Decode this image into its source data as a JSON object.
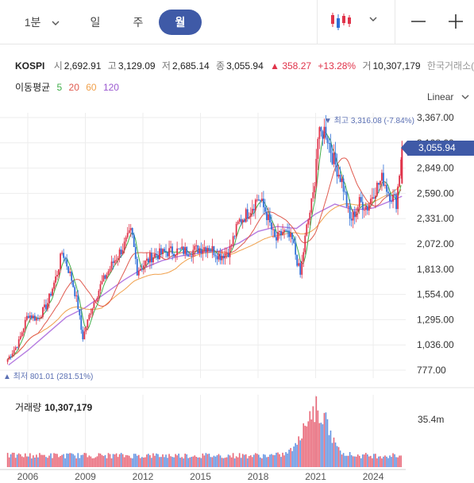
{
  "toolbar": {
    "period_label": "1분",
    "day_label": "일",
    "week_label": "주",
    "month_label": "월",
    "candle_icon": "candlestick-icon",
    "chart_type_icon": "chevron-down-icon",
    "zoom_out_icon": "minus-icon",
    "zoom_in_icon": "plus-icon"
  },
  "quote": {
    "symbol": "KOSPI",
    "open_label": "시",
    "open": "2,692.91",
    "high_label": "고",
    "high": "3,129.09",
    "low_label": "저",
    "low": "2,685.14",
    "close_label": "종",
    "close": "3,055.94",
    "change": "▲ 358.27",
    "change_pct": "+13.28%",
    "volume_label": "거",
    "volume": "10,307,179",
    "exchange": "한국거래소(KRX)"
  },
  "moving_average": {
    "label": "이동평균",
    "periods": [
      {
        "text": "5",
        "color": "#3fae49"
      },
      {
        "text": "20",
        "color": "#e05a4e"
      },
      {
        "text": "60",
        "color": "#f0a04b"
      },
      {
        "text": "120",
        "color": "#9b59d0"
      }
    ]
  },
  "scale_mode": "Linear",
  "current_price_tag": "3,055.94",
  "annotations": {
    "high": "▼ 최고 3,316.08 (-7.84%)",
    "low": "▲ 최저 801.01 (281.51%)"
  },
  "volume_panel": {
    "label": "거래량",
    "value": "10,307,179",
    "max_label": "35.4m"
  },
  "colors": {
    "up": "#e0334a",
    "down": "#2f6fd8",
    "accent": "#3f5aa7"
  },
  "chart_data": {
    "type": "line",
    "title": "",
    "ylim": [
      777,
      3367
    ],
    "y_ticks": [
      "3,367.00",
      "3,108.00",
      "2,849.00",
      "2,590.00",
      "2,331.00",
      "2,072.00",
      "1,813.00",
      "1,554.00",
      "1,295.00",
      "1,036.00",
      "777.00"
    ],
    "x_ticks": [
      "2006",
      "2009",
      "2012",
      "2015",
      "2018",
      "2021",
      "2024"
    ],
    "x_tick_years": [
      2006,
      2009,
      2012,
      2015,
      2018,
      2021,
      2024
    ],
    "grid": true,
    "series": [
      {
        "x": [
          2004.95,
          2005.5,
          2006.0,
          2006.5,
          2007.0,
          2007.5,
          2007.8,
          2008.3,
          2008.6,
          2008.85,
          2009.3,
          2009.8,
          2010.5,
          2011.0,
          2011.4,
          2011.7,
          2012.5,
          2013.5,
          2014.5,
          2015.4,
          2016.0,
          2016.5,
          2017.0,
          2017.5,
          2018.0,
          2018.4,
          2018.9,
          2019.3,
          2019.8,
          2020.2,
          2020.5,
          2020.9,
          2021.1,
          2021.5,
          2021.9,
          2022.4,
          2022.8,
          2023.3,
          2023.7,
          2024.0,
          2024.5,
          2024.8,
          2025.2,
          2025.5
        ],
        "values": [
          890,
          1050,
          1350,
          1300,
          1450,
          1750,
          2000,
          1700,
          1450,
          1100,
          1400,
          1650,
          1900,
          2050,
          2200,
          1800,
          1950,
          2000,
          2000,
          2050,
          1950,
          2000,
          2300,
          2400,
          2550,
          2400,
          2100,
          2200,
          2100,
          1750,
          2200,
          2600,
          3150,
          3250,
          2950,
          2700,
          2300,
          2500,
          2450,
          2600,
          2750,
          2600,
          2500,
          3055.94
        ]
      },
      {
        "x": [
          2005.0,
          2006.0,
          2007.0,
          2008.0,
          2009.0,
          2010.0,
          2011.0,
          2012.0,
          2013.0,
          2014.0,
          2015.0,
          2016.0,
          2017.0,
          2018.0,
          2019.0,
          2020.0,
          2021.0,
          2022.0,
          2023.0,
          2024.0,
          2025.5
        ],
        "values": [
          830,
          980,
          1150,
          1320,
          1420,
          1560,
          1700,
          1820,
          1900,
          1950,
          1980,
          2000,
          2080,
          2200,
          2250,
          2230,
          2380,
          2480,
          2420,
          2440,
          2560
        ]
      }
    ]
  }
}
